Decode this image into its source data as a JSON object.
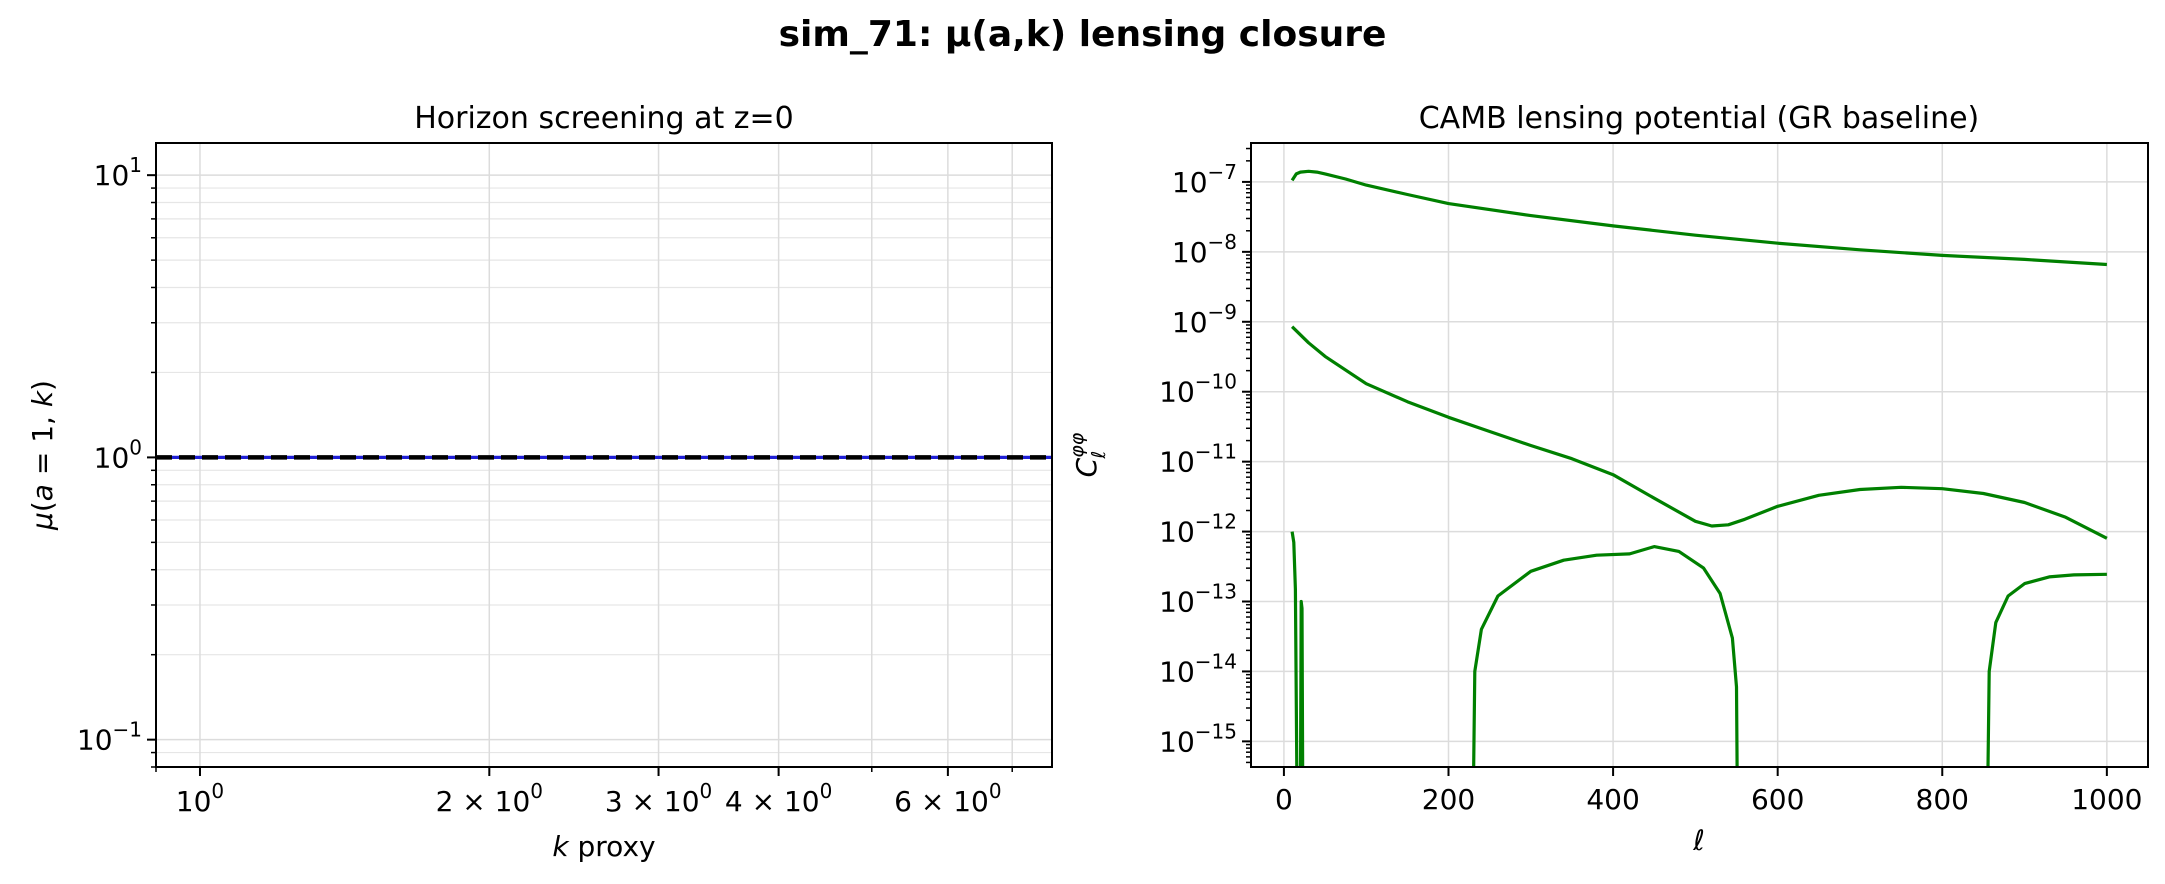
{
  "figure": {
    "suptitle": "sim_71: μ(a,k) lensing closure"
  },
  "chart_data": [
    {
      "type": "line",
      "title": "Horizon screening at z=0",
      "xlabel": "k proxy",
      "ylabel": "μ(a = 1, k)",
      "xscale": "log",
      "yscale": "log",
      "xlim": [
        0.9,
        7.7
      ],
      "ylim": [
        0.08,
        13
      ],
      "grid": true,
      "x_ticks": [
        {
          "value": 1,
          "mant": "",
          "exp": "0"
        },
        {
          "value": 2,
          "mant": "2 × ",
          "exp": "0"
        },
        {
          "value": 3,
          "mant": "3 × ",
          "exp": "0"
        },
        {
          "value": 4,
          "mant": "4 × ",
          "exp": "0"
        },
        {
          "value": 6,
          "mant": "6 × ",
          "exp": "0"
        }
      ],
      "y_ticks": [
        {
          "value": 0.1,
          "exp": "−1"
        },
        {
          "value": 1,
          "exp": "0"
        },
        {
          "value": 10,
          "exp": "1"
        }
      ],
      "series": [
        {
          "color": "#1f1fd6",
          "style": "solid",
          "x": [
            0.9,
            7.7
          ],
          "y": [
            1.0,
            1.0
          ]
        },
        {
          "color": "#000000",
          "style": "dashed",
          "x": [
            0.9,
            7.7
          ],
          "y": [
            1.0,
            1.0
          ]
        }
      ]
    },
    {
      "type": "line",
      "title": "CAMB lensing potential (GR baseline)",
      "xlabel": "ℓ",
      "ylabel": "C_ℓ^{φφ}",
      "xscale": "linear",
      "yscale": "log",
      "xlim": [
        -40,
        1050
      ],
      "ylim": [
        4.3e-16,
        3.6e-07
      ],
      "grid": true,
      "x_ticks": [
        0,
        200,
        400,
        600,
        800,
        1000
      ],
      "y_ticks": [
        {
          "value": 1e-15,
          "exp": "−15"
        },
        {
          "value": 1e-14,
          "exp": "−14"
        },
        {
          "value": 1e-13,
          "exp": "−13"
        },
        {
          "value": 1e-12,
          "exp": "−12"
        },
        {
          "value": 1e-11,
          "exp": "−11"
        },
        {
          "value": 1e-10,
          "exp": "−10"
        },
        {
          "value": 1e-09,
          "exp": "−9"
        },
        {
          "value": 1e-08,
          "exp": "−8"
        },
        {
          "value": 1e-07,
          "exp": "−7"
        }
      ],
      "series": [
        {
          "color": "#008000",
          "x": [
            10,
            15,
            20,
            30,
            40,
            50,
            75,
            100,
            150,
            200,
            300,
            400,
            500,
            600,
            700,
            800,
            900,
            1000
          ],
          "y": [
            1.05e-07,
            1.3e-07,
            1.38e-07,
            1.42e-07,
            1.38e-07,
            1.3e-07,
            1.1e-07,
            9e-08,
            6.6e-08,
            4.9e-08,
            3.3e-08,
            2.35e-08,
            1.73e-08,
            1.33e-08,
            1.07e-08,
            8.9e-09,
            7.8e-09,
            6.6e-09
          ]
        },
        {
          "color": "#008000",
          "x": [
            10,
            30,
            50,
            100,
            150,
            200,
            250,
            300,
            350,
            400,
            450,
            500,
            520,
            540,
            560,
            600,
            650,
            700,
            750,
            800,
            850,
            900,
            950,
            1000
          ],
          "y": [
            8.5e-10,
            5e-10,
            3.2e-10,
            1.3e-10,
            7.2e-11,
            4.3e-11,
            2.7e-11,
            1.7e-11,
            1.1e-11,
            6.5e-12,
            3e-12,
            1.4e-12,
            1.2e-12,
            1.25e-12,
            1.5e-12,
            2.3e-12,
            3.3e-12,
            4e-12,
            4.3e-12,
            4.1e-12,
            3.5e-12,
            2.6e-12,
            1.6e-12,
            8e-13
          ]
        },
        {
          "color": "#008000",
          "x": [
            10,
            12,
            14,
            16
          ],
          "y": [
            1e-12,
            7e-13,
            1.5e-13,
            1e-17
          ]
        },
        {
          "color": "#008000",
          "x": [
            20,
            21,
            22,
            23
          ],
          "y": [
            1e-17,
            1e-13,
            8e-14,
            1e-17
          ]
        },
        {
          "color": "#008000",
          "x": [
            230,
            232,
            240,
            260,
            300,
            340,
            380,
            420,
            450,
            480,
            510,
            530,
            545,
            550,
            551
          ],
          "y": [
            1e-17,
            1e-14,
            4e-14,
            1.2e-13,
            2.7e-13,
            3.9e-13,
            4.6e-13,
            4.8e-13,
            6.1e-13,
            5.2e-13,
            3e-13,
            1.3e-13,
            3e-14,
            6e-15,
            1e-17
          ]
        },
        {
          "color": "#008000",
          "x": [
            855,
            857,
            865,
            880,
            900,
            930,
            960,
            1000
          ],
          "y": [
            1e-17,
            1e-14,
            5e-14,
            1.2e-13,
            1.8e-13,
            2.25e-13,
            2.4e-13,
            2.45e-13
          ]
        }
      ]
    }
  ]
}
